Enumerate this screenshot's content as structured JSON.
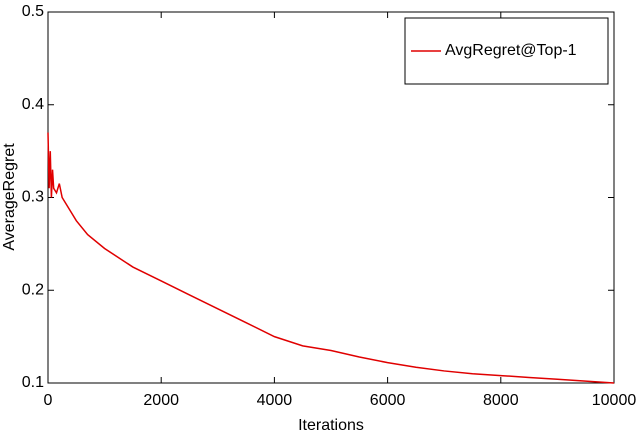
{
  "chart_data": {
    "type": "line",
    "x_label": "Iterations",
    "y_label": "AverageRegret",
    "x": [
      0,
      20,
      40,
      60,
      80,
      100,
      150,
      200,
      250,
      300,
      400,
      500,
      700,
      1000,
      1500,
      2000,
      2500,
      3000,
      3500,
      4000,
      4500,
      5000,
      5500,
      6000,
      6500,
      7000,
      7500,
      8000,
      8500,
      9000,
      9500,
      10000
    ],
    "series": [
      {
        "name": "AvgRegret@Top-1",
        "color": "#e00000",
        "values": [
          0.37,
          0.31,
          0.35,
          0.3,
          0.33,
          0.31,
          0.305,
          0.315,
          0.3,
          0.295,
          0.285,
          0.275,
          0.26,
          0.245,
          0.225,
          0.21,
          0.195,
          0.18,
          0.165,
          0.15,
          0.14,
          0.135,
          0.128,
          0.122,
          0.117,
          0.113,
          0.11,
          0.108,
          0.106,
          0.104,
          0.102,
          0.1
        ]
      }
    ],
    "xlim": [
      0,
      10000
    ],
    "xticks": [
      0,
      2000,
      4000,
      6000,
      8000,
      10000
    ],
    "ylim": [
      0.1,
      0.5
    ],
    "yticks": [
      0.1,
      0.2,
      0.3,
      0.4,
      0.5
    ],
    "legend": "upper right"
  }
}
